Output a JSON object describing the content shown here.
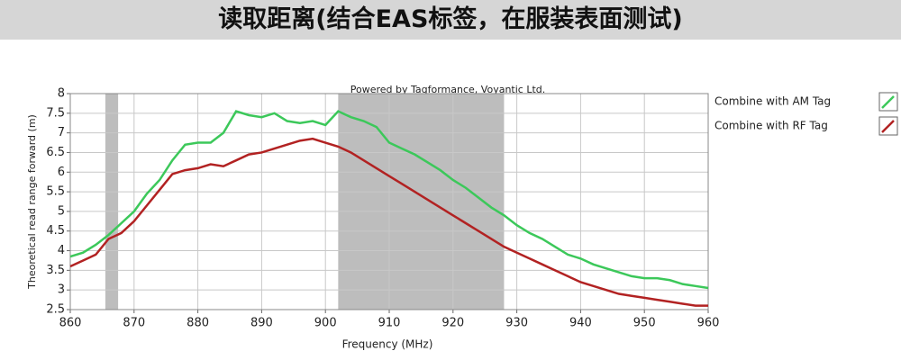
{
  "title": "读取距离(结合EAS标签，在服装表面测试)",
  "chart_data": {
    "type": "line",
    "annotation": "Powered by Tagformance, Voyantic Ltd.",
    "x_label": "Frequency (MHz)",
    "y_label": "Theoretical read range forward (m)",
    "x": [
      860,
      862,
      864,
      866,
      868,
      870,
      872,
      874,
      876,
      878,
      880,
      882,
      884,
      886,
      888,
      890,
      892,
      894,
      896,
      898,
      900,
      902,
      904,
      906,
      908,
      910,
      912,
      914,
      916,
      918,
      920,
      922,
      924,
      926,
      928,
      930,
      932,
      934,
      936,
      938,
      940,
      942,
      944,
      946,
      948,
      950,
      952,
      954,
      956,
      958,
      960
    ],
    "series": [
      {
        "name": "Combine with AM Tag",
        "color": "#3cc85a",
        "values": [
          3.85,
          3.95,
          4.15,
          4.4,
          4.7,
          5.0,
          5.45,
          5.8,
          6.3,
          6.7,
          6.75,
          6.75,
          7.0,
          7.55,
          7.45,
          7.4,
          7.5,
          7.3,
          7.25,
          7.3,
          7.2,
          7.55,
          7.4,
          7.3,
          7.15,
          6.75,
          6.6,
          6.45,
          6.25,
          6.05,
          5.8,
          5.6,
          5.35,
          5.1,
          4.9,
          4.65,
          4.45,
          4.3,
          4.1,
          3.9,
          3.8,
          3.65,
          3.55,
          3.45,
          3.35,
          3.3,
          3.3,
          3.25,
          3.15,
          3.1,
          3.05
        ]
      },
      {
        "name": "Combine with RF Tag",
        "color": "#b22222",
        "values": [
          3.6,
          3.75,
          3.9,
          4.3,
          4.45,
          4.75,
          5.15,
          5.55,
          5.95,
          6.05,
          6.1,
          6.2,
          6.15,
          6.3,
          6.45,
          6.5,
          6.6,
          6.7,
          6.8,
          6.85,
          6.75,
          6.65,
          6.5,
          6.3,
          6.1,
          5.9,
          5.7,
          5.5,
          5.3,
          5.1,
          4.9,
          4.7,
          4.5,
          4.3,
          4.1,
          3.95,
          3.8,
          3.65,
          3.5,
          3.35,
          3.2,
          3.1,
          3.0,
          2.9,
          2.85,
          2.8,
          2.75,
          2.7,
          2.65,
          2.6,
          2.6
        ]
      }
    ],
    "shaded_ranges": [
      [
        865.5,
        867.5
      ],
      [
        902,
        928
      ]
    ],
    "shade_color": "#bdbdbd",
    "xlim": [
      860,
      960
    ],
    "xticks": [
      860,
      870,
      880,
      890,
      900,
      910,
      920,
      930,
      940,
      950,
      960
    ],
    "ylim": [
      2.5,
      8
    ],
    "yticks": [
      2.5,
      3,
      3.5,
      4,
      4.5,
      5,
      5.5,
      6,
      6.5,
      7,
      7.5,
      8
    ],
    "grid": true,
    "legend": "right"
  }
}
